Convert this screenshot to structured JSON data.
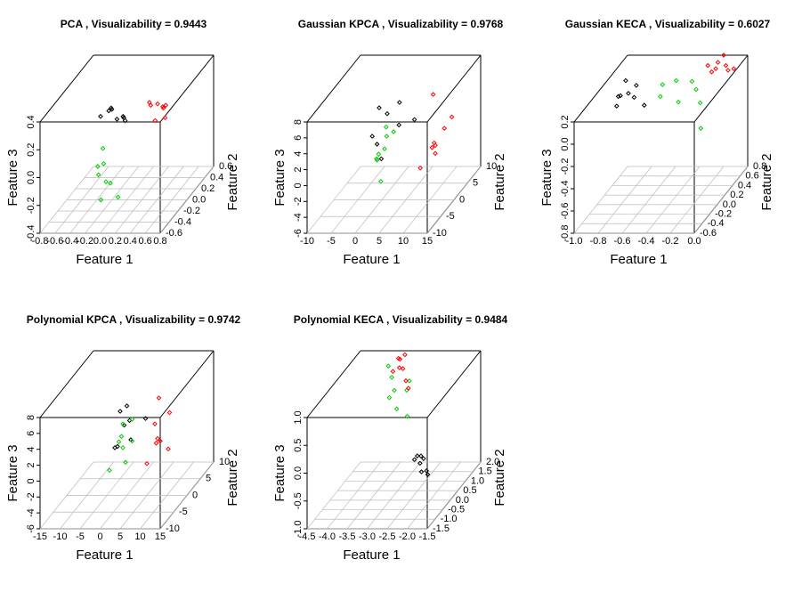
{
  "chart_data": [
    {
      "type": "scatter3d",
      "title": "PCA , Visualizability = 0.9443",
      "xlabel": "Feature 1",
      "ylabel": "Feature 2",
      "zlabel": "Feature 3",
      "xlim": [
        -0.8,
        0.8
      ],
      "xticks": [
        -0.8,
        -0.6,
        -0.4,
        -0.2,
        {
          "value": 0,
          "label": "0.0"
        },
        0.2,
        0.4,
        0.6,
        0.8
      ],
      "ylim": [
        -0.6,
        0.6
      ],
      "yticks": [
        -0.6,
        -0.4,
        -0.2,
        {
          "value": 0,
          "label": "0.0"
        },
        0.2,
        0.4,
        0.6
      ],
      "zlim": [
        -0.4,
        0.4
      ],
      "zticks": [
        -0.4,
        -0.2,
        {
          "value": 0,
          "label": "0.0"
        },
        0.2,
        0.4
      ],
      "grid": true,
      "series": [
        {
          "color": "#000000",
          "x": [
            -0.3,
            -0.2,
            -0.25,
            -0.15,
            -0.1,
            -0.35,
            -0.2,
            -0.05
          ],
          "y": [
            0.1,
            0,
            0.2,
            -0.1,
            0.1,
            0,
            0.3,
            0
          ],
          "z": [
            0.2,
            0.25,
            0.1,
            0.3,
            0.15,
            0.2,
            0.05,
            0.2
          ]
        },
        {
          "color": "#ff0000",
          "x": [
            0.2,
            0.3,
            0.35,
            0.25,
            0.4,
            0.3,
            0.2,
            0.45
          ],
          "y": [
            0.2,
            0.3,
            0.1,
            0.4,
            0.2,
            0,
            0.3,
            0.1
          ],
          "z": [
            0.2,
            0.15,
            0.25,
            0.1,
            0.2,
            0.3,
            0.05,
            0.15
          ]
        },
        {
          "color": "#00cc00",
          "x": [
            -0.2,
            -0.1,
            -0.15,
            0,
            -0.25,
            -0.1,
            -0.05,
            -0.2
          ],
          "y": [
            -0.3,
            -0.2,
            -0.4,
            -0.2,
            -0.1,
            -0.3,
            -0.5,
            -0.2
          ],
          "z": [
            -0.1,
            -0.2,
            0,
            -0.3,
            -0.1,
            -0.15,
            -0.2,
            0.05
          ]
        }
      ]
    },
    {
      "type": "scatter3d",
      "title": "Gaussian KPCA , Visualizability = 0.9768",
      "xlabel": "Feature 1",
      "ylabel": "Feature 2",
      "zlabel": "Feature 3",
      "xlim": [
        -10,
        15
      ],
      "xticks": [
        -10,
        -5,
        0,
        5,
        10,
        15
      ],
      "ylim": [
        -10,
        10
      ],
      "yticks": [
        -10,
        -5,
        0,
        5,
        10
      ],
      "zlim": [
        -6,
        8
      ],
      "zticks": [
        -6,
        -4,
        -2,
        0,
        2,
        4,
        6,
        8
      ],
      "grid": true,
      "series": [
        {
          "color": "#000000",
          "x": [
            -2,
            0,
            1,
            3,
            -1,
            2,
            0,
            4
          ],
          "y": [
            0,
            2,
            -2,
            1,
            0,
            3,
            -1,
            5
          ],
          "z": [
            2,
            4,
            0,
            3,
            1,
            5,
            6,
            2
          ]
        },
        {
          "color": "#00cc00",
          "x": [
            0,
            1,
            2,
            3,
            1,
            -1,
            2,
            0
          ],
          "y": [
            -2,
            0,
            -4,
            -1,
            -3,
            0,
            -2,
            1
          ],
          "z": [
            0,
            2,
            -2,
            3,
            1,
            -1,
            4,
            0
          ]
        },
        {
          "color": "#ff0000",
          "x": [
            8,
            10,
            12,
            14,
            9,
            11,
            13,
            10
          ],
          "y": [
            0,
            2,
            -2,
            1,
            3,
            -1,
            0,
            2
          ],
          "z": [
            -2,
            0,
            2,
            4,
            6,
            1,
            3,
            -1
          ]
        }
      ]
    },
    {
      "type": "scatter3d",
      "title": "Gaussian KECA , Visualizability = 0.6027",
      "xlabel": "Feature 1",
      "ylabel": "Feature 2",
      "zlabel": "Feature 3",
      "xlim": [
        -1,
        0
      ],
      "xticks": [
        {
          "value": -1,
          "label": "-1.0"
        },
        -0.8,
        -0.6,
        -0.4,
        -0.2,
        {
          "value": 0,
          "label": "0.0"
        }
      ],
      "ylim": [
        -0.6,
        0.8
      ],
      "yticks": [
        -0.6,
        -0.4,
        -0.2,
        {
          "value": 0,
          "label": "0.0"
        },
        0.2,
        0.4,
        0.6,
        0.8
      ],
      "zlim": [
        -0.8,
        0.2
      ],
      "zticks": [
        -0.8,
        -0.6,
        -0.4,
        -0.2,
        {
          "value": 0,
          "label": "0.0"
        },
        0.2
      ],
      "grid": true,
      "series": [
        {
          "color": "#000000",
          "x": [
            -0.95,
            -0.9,
            -0.85,
            -0.8,
            -0.9,
            -0.75,
            -0.85,
            -0.92
          ],
          "y": [
            0.4,
            0.3,
            0.5,
            0.4,
            0.2,
            0.45,
            0.35,
            0.5
          ],
          "z": [
            0,
            0.05,
            -0.05,
            0.1,
            0,
            -0.1,
            0.05,
            0.1
          ]
        },
        {
          "color": "#00cc00",
          "x": [
            -0.6,
            -0.5,
            -0.4,
            -0.3,
            -0.55,
            -0.45,
            -0.35,
            -0.2
          ],
          "y": [
            0.4,
            0.5,
            0.6,
            0.5,
            0.3,
            0.4,
            0.55,
            0.2
          ],
          "z": [
            0,
            0.1,
            0.05,
            -0.1,
            0.15,
            -0.05,
            0,
            -0.2
          ]
        },
        {
          "color": "#ff0000",
          "x": [
            -0.3,
            -0.25,
            -0.2,
            -0.15,
            -0.1,
            -0.2,
            -0.3,
            -0.1
          ],
          "y": [
            0.7,
            0.75,
            0.8,
            0.7,
            0.75,
            0.65,
            0.8,
            0.6
          ],
          "z": [
            0.15,
            0.1,
            0.2,
            0.15,
            0.1,
            0.2,
            0.05,
            0.15
          ]
        }
      ]
    },
    {
      "type": "scatter3d",
      "title": "Polynomial KPCA , Visualizability = 0.9742",
      "xlabel": "Feature 1",
      "ylabel": "Feature 2",
      "zlabel": "Feature 3",
      "xlim": [
        -15,
        15
      ],
      "xticks": [
        -15,
        -10,
        -5,
        0,
        5,
        10,
        15
      ],
      "ylim": [
        -10,
        10
      ],
      "yticks": [
        -10,
        -5,
        0,
        5,
        10
      ],
      "zlim": [
        -6,
        8
      ],
      "zticks": [
        -6,
        -4,
        -2,
        0,
        2,
        4,
        6,
        8
      ],
      "grid": true,
      "series": [
        {
          "color": "#000000",
          "x": [
            -3,
            -2,
            -1,
            0,
            -2,
            1,
            -1,
            2
          ],
          "y": [
            0,
            2,
            -2,
            1,
            3,
            0,
            -1,
            4
          ],
          "z": [
            0,
            2,
            1,
            3,
            4,
            1,
            5,
            2
          ]
        },
        {
          "color": "#00cc00",
          "x": [
            -3,
            -1,
            0,
            2,
            -2,
            1,
            -1,
            0
          ],
          "y": [
            -2,
            0,
            -3,
            -1,
            1,
            -2,
            0,
            2
          ],
          "z": [
            -2,
            0,
            2,
            4,
            1,
            -1,
            3,
            0
          ]
        },
        {
          "color": "#ff0000",
          "x": [
            5,
            7,
            9,
            10,
            6,
            8,
            7,
            9
          ],
          "y": [
            0,
            2,
            -2,
            1,
            3,
            -1,
            0,
            2
          ],
          "z": [
            -2,
            0,
            2,
            4,
            5,
            1,
            3,
            -1
          ]
        }
      ]
    },
    {
      "type": "scatter3d",
      "title": "Polynomial KECA , Visualizability = 0.9484",
      "xlabel": "Feature 1",
      "ylabel": "Feature 2",
      "zlabel": "Feature 3",
      "xlim": [
        -4.5,
        -1.5
      ],
      "xticks": [
        -4.5,
        {
          "value": -4,
          "label": "-4.0"
        },
        -3.5,
        {
          "value": -3,
          "label": "-3.0"
        },
        -2.5,
        {
          "value": -2,
          "label": "-2.0"
        },
        -1.5
      ],
      "ylim": [
        -1.5,
        2
      ],
      "yticks": [
        -1.5,
        {
          "value": -1,
          "label": "-1.0"
        },
        -0.5,
        {
          "value": 0,
          "label": "0.0"
        },
        0.5,
        {
          "value": 1,
          "label": "1.0"
        },
        1.5,
        {
          "value": 2,
          "label": "2.0"
        }
      ],
      "zlim": [
        -1,
        1
      ],
      "zticks": [
        {
          "value": -1,
          "label": "-1.0"
        },
        -0.5,
        {
          "value": 0,
          "label": "0.0"
        },
        0.5,
        {
          "value": 1,
          "label": "1.0"
        }
      ],
      "grid": true,
      "series": [
        {
          "color": "#000000",
          "x": [
            -2.2,
            -2.1,
            -2,
            -1.9,
            -2.05,
            -1.95,
            -2.15,
            -1.85
          ],
          "y": [
            -0.5,
            -0.4,
            -0.6,
            -0.5,
            -0.3,
            -0.7,
            -0.45,
            -0.55
          ],
          "z": [
            -0.1,
            -0.2,
            0,
            -0.3,
            -0.15,
            -0.25,
            -0.05,
            -0.35
          ]
        },
        {
          "color": "#00cc00",
          "x": [
            -3.4,
            -3.2,
            -3,
            -3.3,
            -3.1,
            -2.9,
            -3.5,
            -2.8
          ],
          "y": [
            1,
            0.8,
            1.1,
            0.9,
            0.7,
            1,
            1.2,
            0.6
          ],
          "z": [
            0.5,
            0.7,
            0.6,
            0.9,
            0.4,
            0.8,
            1,
            0.3
          ]
        },
        {
          "color": "#ff0000",
          "x": [
            -3.5,
            -3.4,
            -3.3,
            -3.2,
            -3.1,
            -3.4,
            -3.25,
            -3.0
          ],
          "y": [
            1.5,
            1.6,
            1.4,
            1.5,
            1.3,
            1.7,
            1.5,
            1.2
          ],
          "z": [
            0.8,
            1,
            0.9,
            1.1,
            0.7,
            0.95,
            0.85,
            0.6
          ]
        }
      ]
    }
  ]
}
